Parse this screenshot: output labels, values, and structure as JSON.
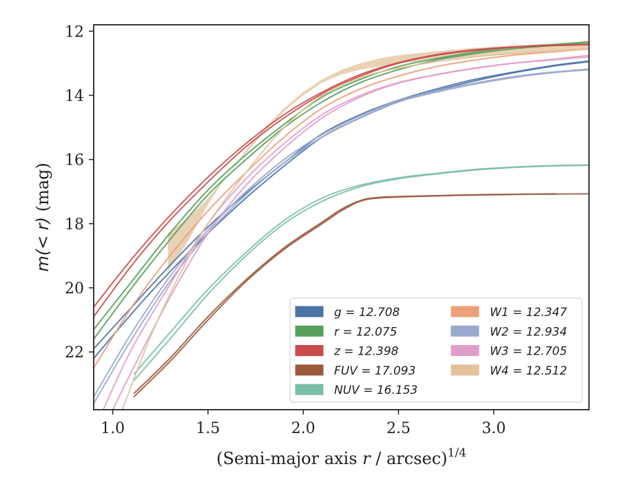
{
  "chart_data": {
    "type": "line",
    "title": "",
    "xlabel": "(Semi-major axis r / arcsec)^{1/4}",
    "xlabel_parts": {
      "prefix": "(Semi-major axis ",
      "var": "r",
      "suffix": " / arcsec)",
      "exponent": "1/4"
    },
    "ylabel": "m(<r) (mag)",
    "ylabel_parts": {
      "math": "m(< r)",
      "unit": " (mag)"
    },
    "xlim": [
      0.9,
      3.5
    ],
    "ylim": [
      23.8,
      11.8
    ],
    "y_inverted": true,
    "xticks": [
      1.0,
      1.5,
      2.0,
      2.5,
      3.0
    ],
    "xtick_labels": [
      "1.0",
      "1.5",
      "2.0",
      "2.5",
      "3.0"
    ],
    "yticks": [
      12,
      14,
      16,
      18,
      20,
      22
    ],
    "ytick_labels": [
      "12",
      "14",
      "16",
      "18",
      "20",
      "22"
    ],
    "grid": false,
    "legend": {
      "placement": "lower-right",
      "columns": 2
    },
    "series": [
      {
        "name": "g",
        "label": "g = 12.708",
        "color": "#4c72a6",
        "lines": [
          {
            "x": [
              0.9,
              1.1,
              1.3,
              1.5,
              1.7,
              1.9,
              2.1,
              2.3,
              2.5,
              2.7,
              2.9,
              3.1,
              3.3,
              3.5
            ],
            "y": [
              22.2,
              20.8,
              19.5,
              18.3,
              17.2,
              16.2,
              15.3,
              14.7,
              14.2,
              13.85,
              13.55,
              13.3,
              13.1,
              12.95
            ]
          },
          {
            "x": [
              0.9,
              1.1,
              1.3,
              1.5,
              1.7,
              1.9,
              2.1,
              2.3,
              2.5,
              2.7,
              2.9,
              3.1,
              3.3,
              3.5
            ],
            "y": [
              21.9,
              20.6,
              19.3,
              18.1,
              17.05,
              16.1,
              15.2,
              14.6,
              14.15,
              13.8,
              13.5,
              13.28,
              13.08,
              12.93
            ]
          }
        ]
      },
      {
        "name": "r",
        "label": "r = 12.075",
        "color": "#55a05a",
        "lines": [
          {
            "x": [
              0.9,
              1.1,
              1.3,
              1.5,
              1.7,
              1.9,
              2.1,
              2.3,
              2.5,
              2.7,
              2.9,
              3.1,
              3.3,
              3.5
            ],
            "y": [
              21.6,
              20.0,
              18.5,
              17.1,
              16.0,
              15.0,
              14.2,
              13.6,
              13.2,
              12.9,
              12.7,
              12.55,
              12.45,
              12.35
            ]
          },
          {
            "x": [
              0.9,
              1.1,
              1.3,
              1.5,
              1.7,
              1.9,
              2.1,
              2.3,
              2.5,
              2.7,
              2.9,
              3.1,
              3.3,
              3.5
            ],
            "y": [
              21.3,
              19.8,
              18.3,
              16.95,
              15.85,
              14.9,
              14.05,
              13.5,
              13.1,
              12.85,
              12.65,
              12.5,
              12.42,
              12.33
            ]
          }
        ]
      },
      {
        "name": "z",
        "label": "z = 12.398",
        "color": "#c94b4b",
        "lines": [
          {
            "x": [
              0.9,
              1.1,
              1.3,
              1.5,
              1.7,
              1.9,
              2.1,
              2.3,
              2.5,
              2.7,
              2.9,
              3.1,
              3.3,
              3.5
            ],
            "y": [
              20.9,
              19.3,
              17.9,
              16.7,
              15.6,
              14.7,
              13.95,
              13.4,
              13.0,
              12.75,
              12.6,
              12.5,
              12.45,
              12.42
            ]
          },
          {
            "x": [
              0.9,
              1.1,
              1.3,
              1.5,
              1.7,
              1.9,
              2.1,
              2.3,
              2.5,
              2.7,
              2.9,
              3.1,
              3.3,
              3.5
            ],
            "y": [
              20.6,
              19.1,
              17.75,
              16.55,
              15.5,
              14.6,
              13.9,
              13.35,
              12.98,
              12.73,
              12.58,
              12.49,
              12.44,
              12.41
            ]
          }
        ]
      },
      {
        "name": "FUV",
        "label": "FUV = 17.093",
        "color": "#9b5a3c",
        "lines": [
          {
            "x": [
              1.11,
              1.3,
              1.5,
              1.7,
              1.9,
              2.1,
              2.2,
              2.3,
              2.4,
              2.6,
              2.8,
              3.0,
              3.2,
              3.33
            ],
            "y": [
              23.4,
              22.3,
              21.0,
              19.8,
              18.8,
              18.0,
              17.6,
              17.3,
              17.2,
              17.15,
              17.12,
              17.1,
              17.08,
              17.07
            ]
          },
          {
            "x": [
              1.11,
              1.3,
              1.5,
              1.7,
              1.9,
              2.1,
              2.2,
              2.3,
              2.4,
              2.6,
              2.8,
              3.0,
              3.2,
              3.5
            ],
            "y": [
              23.3,
              22.2,
              20.9,
              19.75,
              18.75,
              17.95,
              17.55,
              17.28,
              17.18,
              17.14,
              17.11,
              17.09,
              17.08,
              17.07
            ]
          }
        ]
      },
      {
        "name": "NUV",
        "label": "NUV = 16.153",
        "color": "#7bbfa8",
        "lines": [
          {
            "x": [
              1.11,
              1.3,
              1.5,
              1.7,
              1.9,
              2.1,
              2.3,
              2.5,
              2.7,
              2.9,
              3.1,
              3.3,
              3.5
            ],
            "y": [
              22.9,
              21.6,
              20.2,
              19.0,
              18.0,
              17.3,
              16.85,
              16.6,
              16.45,
              16.33,
              16.25,
              16.2,
              16.18
            ]
          },
          {
            "x": [
              1.11,
              1.3,
              1.5,
              1.7,
              1.9,
              2.1,
              2.3,
              2.5,
              2.7,
              2.9,
              3.1,
              3.3,
              3.5
            ],
            "y": [
              22.7,
              21.4,
              20.05,
              18.9,
              17.9,
              17.2,
              16.8,
              16.57,
              16.43,
              16.31,
              16.24,
              16.19,
              16.17
            ]
          }
        ]
      },
      {
        "name": "W1",
        "label": "W1 = 12.347",
        "color": "#eba07a",
        "lines": [
          {
            "x": [
              0.9,
              1.1,
              1.3,
              1.5,
              1.7,
              1.9,
              2.1,
              2.3,
              2.5,
              2.7,
              2.9,
              3.1,
              3.3,
              3.5
            ],
            "y": [
              22.5,
              20.6,
              19.0,
              17.6,
              16.4,
              15.3,
              14.4,
              13.8,
              13.4,
              13.1,
              12.9,
              12.75,
              12.65,
              12.55
            ]
          }
        ]
      },
      {
        "name": "W2",
        "label": "W2 = 12.934",
        "color": "#9aa8cc",
        "lines": [
          {
            "x": [
              0.9,
              1.1,
              1.3,
              1.5,
              1.7,
              1.9,
              2.1,
              2.3,
              2.5,
              2.7,
              2.9,
              3.1,
              3.3,
              3.5
            ],
            "y": [
              23.6,
              21.6,
              19.8,
              18.3,
              17.1,
              16.1,
              15.3,
              14.7,
              14.2,
              13.9,
              13.65,
              13.45,
              13.3,
              13.2
            ]
          },
          {
            "x": [
              0.9,
              1.1,
              1.3,
              1.5,
              1.7,
              1.9,
              2.1,
              2.3,
              2.5,
              2.7,
              2.9,
              3.1,
              3.3,
              3.5
            ],
            "y": [
              23.4,
              21.4,
              19.65,
              18.2,
              17.0,
              16.0,
              15.22,
              14.64,
              14.16,
              13.86,
              13.62,
              13.42,
              13.28,
              13.18
            ]
          }
        ]
      },
      {
        "name": "W3",
        "label": "W3 = 12.705",
        "color": "#df9ec9",
        "lines": [
          {
            "x": [
              0.95,
              1.1,
              1.3,
              1.5,
              1.7,
              1.9,
              2.1,
              2.3,
              2.5,
              2.7,
              2.9,
              3.1,
              3.3,
              3.5
            ],
            "y": [
              23.8,
              21.9,
              19.9,
              18.0,
              16.6,
              15.5,
              14.6,
              14.0,
              13.6,
              13.35,
              13.15,
              13.0,
              12.9,
              12.8
            ]
          },
          {
            "x": [
              1.0,
              1.1,
              1.3,
              1.5,
              1.7,
              1.9,
              2.1,
              2.3,
              2.5,
              2.7,
              2.9,
              3.1,
              3.3,
              3.5
            ],
            "y": [
              23.8,
              22.6,
              20.3,
              18.3,
              16.8,
              15.65,
              14.7,
              14.05,
              13.62,
              13.36,
              13.16,
              13.0,
              12.88,
              12.75
            ]
          }
        ]
      },
      {
        "name": "W4",
        "label": "W4 = 12.512",
        "color": "#e2c29d",
        "lines": [
          {
            "x": [
              1.05,
              1.2,
              1.35,
              1.5,
              1.7,
              1.9,
              2.1,
              2.3,
              2.5,
              2.7,
              2.9,
              3.1,
              3.3,
              3.5
            ],
            "y": [
              23.8,
              21.5,
              19.6,
              18.0,
              16.4,
              15.0,
              14.0,
              13.45,
              13.15,
              12.95,
              12.8,
              12.7,
              12.62,
              12.55
            ]
          }
        ],
        "band": {
          "x": [
            1.29,
            1.4,
            1.5,
            1.6,
            1.7,
            1.8,
            1.9,
            2.0,
            2.1,
            2.2,
            2.3,
            2.4,
            2.5,
            2.7,
            2.9,
            3.1,
            3.3,
            3.5
          ],
          "y_low": [
            19.5,
            18.5,
            17.4,
            16.5,
            15.8,
            15.1,
            14.5,
            14.0,
            13.6,
            13.35,
            13.2,
            13.1,
            13.0,
            12.9,
            12.8,
            12.72,
            12.65,
            12.58
          ],
          "y_high": [
            18.3,
            17.8,
            17.2,
            16.5,
            15.7,
            15.0,
            14.4,
            13.9,
            13.5,
            13.2,
            13.0,
            12.85,
            12.75,
            12.62,
            12.52,
            12.45,
            12.4,
            12.35
          ]
        }
      }
    ]
  }
}
